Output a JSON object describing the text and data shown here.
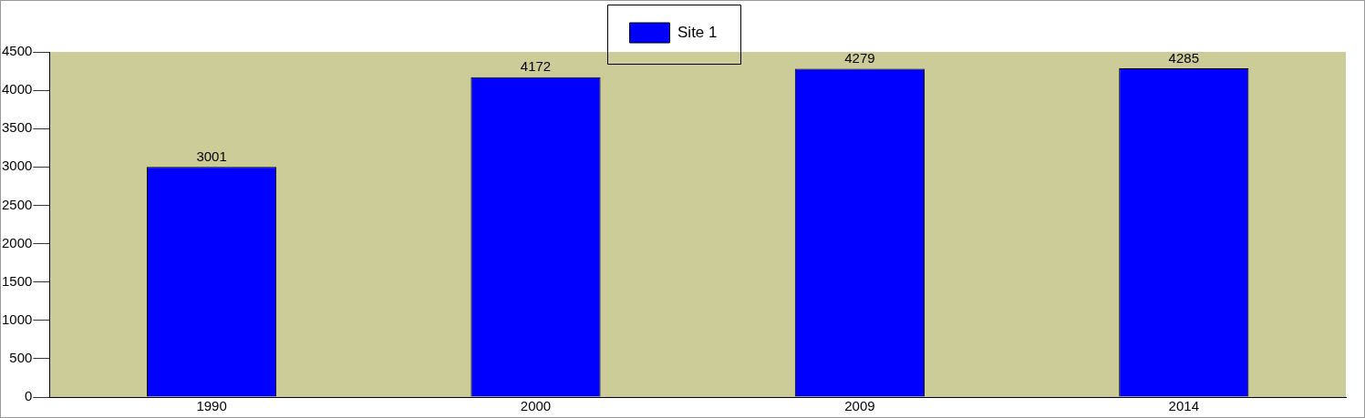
{
  "chart_data": {
    "type": "bar",
    "categories": [
      "1990",
      "2000",
      "2009",
      "2014"
    ],
    "series": [
      {
        "name": "Site 1",
        "color": "#0000ff",
        "values": [
          3001,
          4172,
          4279,
          4285
        ]
      }
    ],
    "ylim": [
      0,
      4500
    ],
    "yticks": [
      0,
      500,
      1000,
      1500,
      2000,
      2500,
      3000,
      3500,
      4000,
      4500
    ],
    "data_labels": true,
    "legend": "top",
    "grid": false
  }
}
